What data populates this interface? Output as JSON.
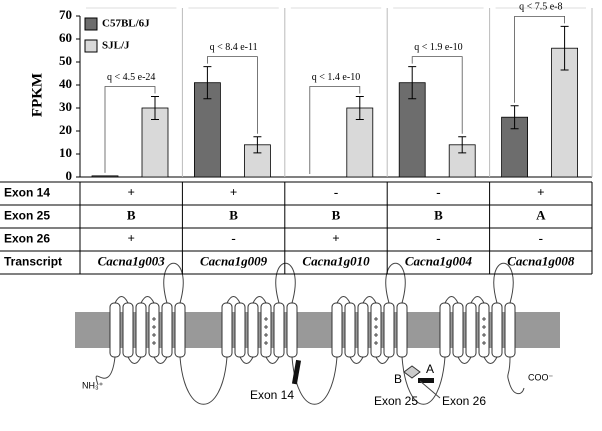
{
  "chart_data": {
    "type": "bar",
    "ylabel": "FPKM",
    "ylim": [
      0,
      70
    ],
    "yticks": [
      0,
      10,
      20,
      30,
      40,
      50,
      60,
      70
    ],
    "categories": [
      "Cacna1g003",
      "Cacna1g009",
      "Cacna1g010",
      "Cacna1g004",
      "Cacna1g008"
    ],
    "series": [
      {
        "name": "C57BL/6J",
        "color": "#6d6d6d",
        "values": [
          0.5,
          41,
          0,
          41,
          26
        ],
        "errors": [
          0,
          7,
          0,
          7,
          5
        ]
      },
      {
        "name": "SJL/J",
        "color": "#d9d9d9",
        "values": [
          30,
          14,
          30,
          14,
          56
        ],
        "errors": [
          5,
          3.5,
          5,
          3.5,
          9.5
        ]
      }
    ],
    "annotations": [
      "q < 4.5 e-24",
      "q < 8.4 e-11",
      "q < 1.4 e-10",
      "q < 1.9 e-10",
      "q < 7.5 e-8"
    ]
  },
  "table": {
    "row_headers": [
      "Exon 14",
      "Exon 25",
      "Exon 26",
      "Transcript"
    ],
    "rows": [
      [
        "+",
        "+",
        "-",
        "-",
        "+"
      ],
      [
        "B",
        "B",
        "B",
        "B",
        "A"
      ],
      [
        "+",
        "-",
        "+",
        "-",
        "-"
      ]
    ]
  },
  "diagram": {
    "n_terminus": "NH₃⁺",
    "c_terminus": "COO⁻",
    "exon14": "Exon 14",
    "exon25": "Exon 25",
    "exon26": "Exon 26",
    "variant_b": "B",
    "variant_a": "A"
  }
}
